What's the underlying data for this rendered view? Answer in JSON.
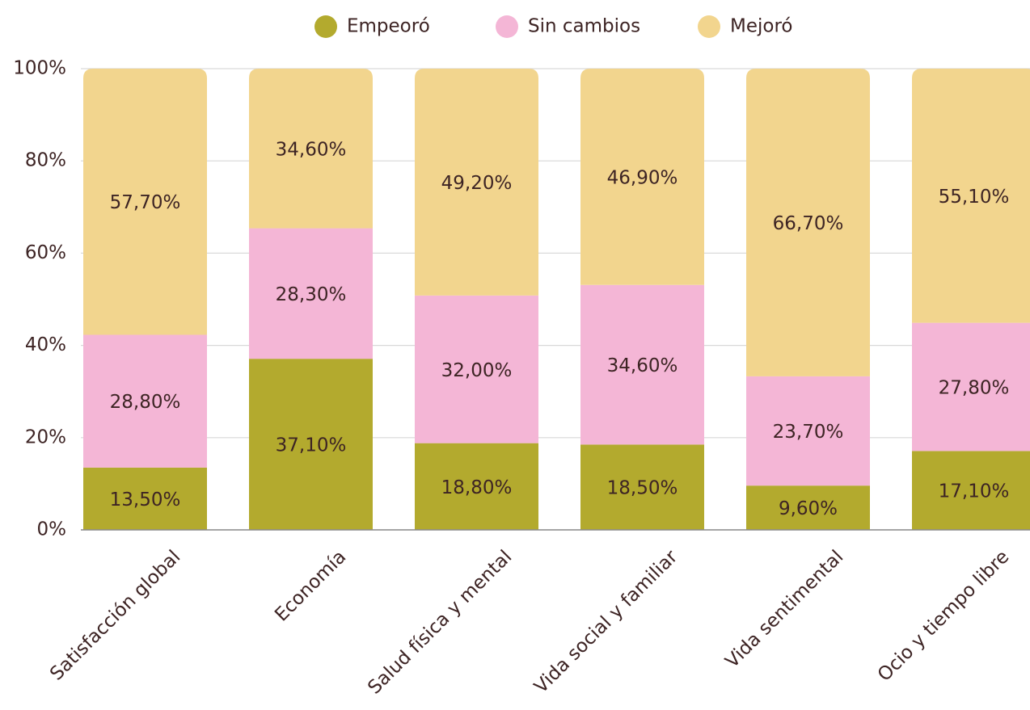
{
  "chart_data": {
    "type": "stacked_bar",
    "categories": [
      "Satisfacción global",
      "Economía",
      "Salud física y mental",
      "Vida social y familiar",
      "Vida sentimental",
      "Ocio y tiempo libre"
    ],
    "series": [
      {
        "name": "Empeoró",
        "color": "#b3aa2e",
        "values": [
          13.5,
          37.1,
          18.8,
          18.5,
          9.6,
          17.1
        ],
        "value_labels": [
          "13,50%",
          "37,10%",
          "18,80%",
          "18,50%",
          "9,60%",
          "17,10%"
        ]
      },
      {
        "name": "Sin cambios",
        "color": "#f4b6d6",
        "values": [
          28.8,
          28.3,
          32.0,
          34.6,
          23.7,
          27.8
        ],
        "value_labels": [
          "28,80%",
          "28,30%",
          "32,00%",
          "34,60%",
          "23,70%",
          "27,80%"
        ]
      },
      {
        "name": "Mejoró",
        "color": "#f2d58e",
        "values": [
          57.7,
          34.6,
          49.2,
          46.9,
          66.7,
          55.1
        ],
        "value_labels": [
          "57,70%",
          "34,60%",
          "49,20%",
          "46,90%",
          "66,70%",
          "55,10%"
        ]
      }
    ],
    "ylim": [
      0,
      100
    ],
    "yticks": [
      {
        "value": 0,
        "label": "0%"
      },
      {
        "value": 20,
        "label": "20%"
      },
      {
        "value": 40,
        "label": "40%"
      },
      {
        "value": 60,
        "label": "60%"
      },
      {
        "value": 80,
        "label": "80%"
      },
      {
        "value": 100,
        "label": "100%"
      }
    ],
    "grid": true,
    "legend": "top"
  }
}
